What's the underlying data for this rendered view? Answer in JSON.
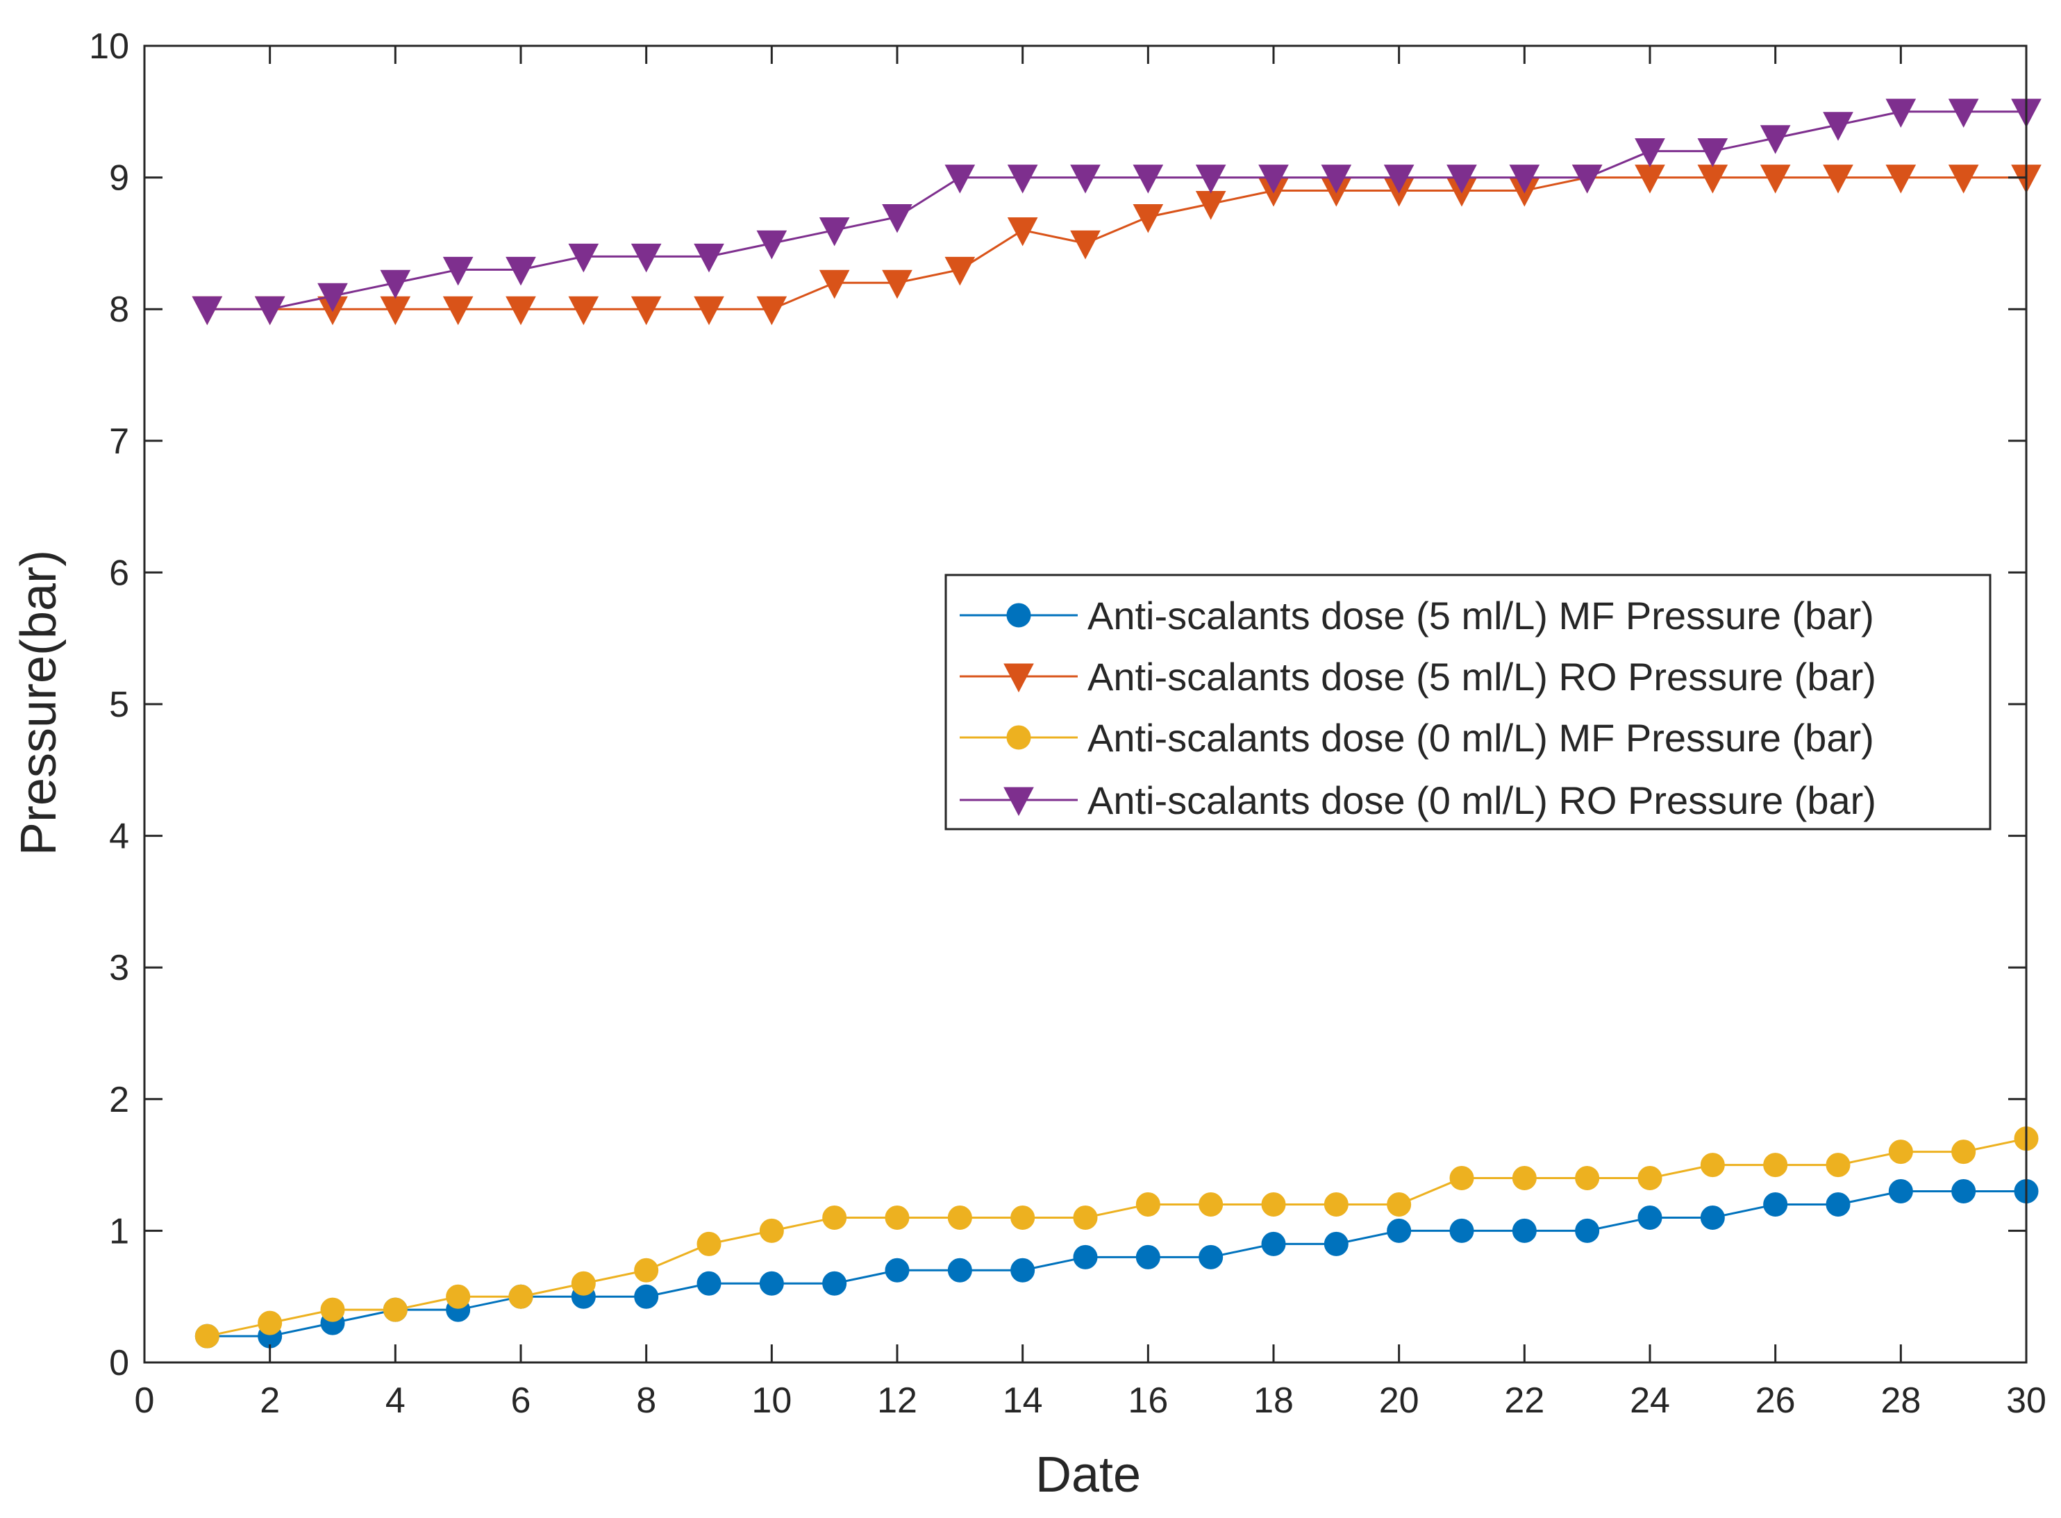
{
  "chart_data": {
    "type": "line",
    "title": "",
    "xlabel": "Date",
    "ylabel": "Pressure(bar)",
    "xlim": [
      0,
      30
    ],
    "ylim": [
      0,
      10
    ],
    "xticks": [
      0,
      2,
      4,
      6,
      8,
      10,
      12,
      14,
      16,
      18,
      20,
      22,
      24,
      26,
      28,
      30
    ],
    "yticks": [
      0,
      1,
      2,
      3,
      4,
      5,
      6,
      7,
      8,
      9,
      10
    ],
    "grid": false,
    "legend_position": "center-right",
    "x": [
      1,
      2,
      3,
      4,
      5,
      6,
      7,
      8,
      9,
      10,
      11,
      12,
      13,
      14,
      15,
      16,
      17,
      18,
      19,
      20,
      21,
      22,
      23,
      24,
      25,
      26,
      27,
      28,
      29,
      30
    ],
    "series": [
      {
        "name": "Anti-scalants dose (5 ml/L) MF Pressure (bar)",
        "color": "#0072BD",
        "marker": "circle",
        "values": [
          0.2,
          0.2,
          0.3,
          0.4,
          0.4,
          0.5,
          0.5,
          0.5,
          0.6,
          0.6,
          0.6,
          0.7,
          0.7,
          0.7,
          0.8,
          0.8,
          0.8,
          0.9,
          0.9,
          1.0,
          1.0,
          1.0,
          1.0,
          1.1,
          1.1,
          1.2,
          1.2,
          1.3,
          1.3,
          1.3
        ]
      },
      {
        "name": "Anti-scalants dose (5 ml/L) RO Pressure (bar)",
        "color": "#D95319",
        "marker": "triangle-down",
        "values": [
          8.0,
          8.0,
          8.0,
          8.0,
          8.0,
          8.0,
          8.0,
          8.0,
          8.0,
          8.0,
          8.2,
          8.2,
          8.3,
          8.6,
          8.5,
          8.7,
          8.8,
          8.9,
          8.9,
          8.9,
          8.9,
          8.9,
          9.0,
          9.0,
          9.0,
          9.0,
          9.0,
          9.0,
          9.0,
          9.0
        ]
      },
      {
        "name": "Anti-scalants dose (0 ml/L) MF Pressure (bar)",
        "color": "#EDB120",
        "marker": "circle",
        "values": [
          0.2,
          0.3,
          0.4,
          0.4,
          0.5,
          0.5,
          0.6,
          0.7,
          0.9,
          1.0,
          1.1,
          1.1,
          1.1,
          1.1,
          1.1,
          1.2,
          1.2,
          1.2,
          1.2,
          1.2,
          1.4,
          1.4,
          1.4,
          1.4,
          1.5,
          1.5,
          1.5,
          1.6,
          1.6,
          1.7
        ]
      },
      {
        "name": "Anti-scalants dose (0 ml/L) RO Pressure (bar)",
        "color": "#7E2F8E",
        "marker": "triangle-down",
        "values": [
          8.0,
          8.0,
          8.1,
          8.2,
          8.3,
          8.3,
          8.4,
          8.4,
          8.4,
          8.5,
          8.6,
          8.7,
          9.0,
          9.0,
          9.0,
          9.0,
          9.0,
          9.0,
          9.0,
          9.0,
          9.0,
          9.0,
          9.0,
          9.2,
          9.2,
          9.3,
          9.4,
          9.5,
          9.5,
          9.5
        ]
      }
    ]
  }
}
